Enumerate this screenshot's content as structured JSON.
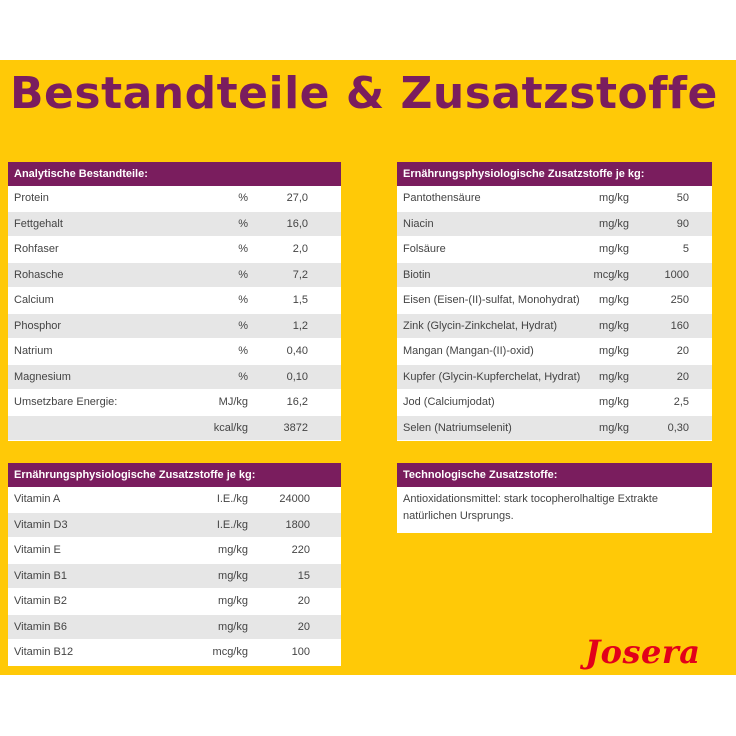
{
  "title": "Bestandteile & Zusatzstoffe",
  "analytic": {
    "header": "Analytische Bestandteile:",
    "rows": [
      {
        "name": "Protein",
        "unit": "%",
        "value": "27,0"
      },
      {
        "name": "Fettgehalt",
        "unit": "%",
        "value": "16,0"
      },
      {
        "name": "Rohfaser",
        "unit": "%",
        "value": "2,0"
      },
      {
        "name": "Rohasche",
        "unit": "%",
        "value": "7,2"
      },
      {
        "name": "Calcium",
        "unit": "%",
        "value": "1,5"
      },
      {
        "name": "Phosphor",
        "unit": "%",
        "value": "1,2"
      },
      {
        "name": "Natrium",
        "unit": "%",
        "value": "0,40"
      },
      {
        "name": "Magnesium",
        "unit": "%",
        "value": "0,10"
      },
      {
        "name": "Umsetzbare Energie:",
        "unit": "MJ/kg",
        "value": "16,2"
      },
      {
        "name": "",
        "unit": "kcal/kg",
        "value": "3872"
      }
    ]
  },
  "vitamins": {
    "header": "Ernährungsphysiologische Zusatzstoffe je kg:",
    "rows": [
      {
        "name": "Vitamin A",
        "unit": "I.E./kg",
        "value": "24000"
      },
      {
        "name": "Vitamin D3",
        "unit": "I.E./kg",
        "value": "1800"
      },
      {
        "name": "Vitamin E",
        "unit": "mg/kg",
        "value": "220"
      },
      {
        "name": "Vitamin B1",
        "unit": "mg/kg",
        "value": "15"
      },
      {
        "name": "Vitamin B2",
        "unit": "mg/kg",
        "value": "20"
      },
      {
        "name": "Vitamin B6",
        "unit": "mg/kg",
        "value": "20"
      },
      {
        "name": "Vitamin B12",
        "unit": "mcg/kg",
        "value": "100"
      }
    ]
  },
  "minerals": {
    "header": "Ernährungsphysiologische Zusatzstoffe je kg:",
    "rows": [
      {
        "name": "Pantothensäure",
        "unit": "mg/kg",
        "value": "50"
      },
      {
        "name": "Niacin",
        "unit": "mg/kg",
        "value": "90"
      },
      {
        "name": "Folsäure",
        "unit": "mg/kg",
        "value": "5"
      },
      {
        "name": "Biotin",
        "unit": "mcg/kg",
        "value": "1000"
      },
      {
        "name": "Eisen (Eisen-(II)-sulfat, Monohydrat)",
        "unit": "mg/kg",
        "value": "250"
      },
      {
        "name": "Zink (Glycin-Zinkchelat, Hydrat)",
        "unit": "mg/kg",
        "value": "160"
      },
      {
        "name": "Mangan (Mangan-(II)-oxid)",
        "unit": "mg/kg",
        "value": "20"
      },
      {
        "name": "Kupfer (Glycin-Kupferchelat, Hydrat)",
        "unit": "mg/kg",
        "value": "20"
      },
      {
        "name": "Jod (Calciumjodat)",
        "unit": "mg/kg",
        "value": "2,5"
      },
      {
        "name": "Selen (Natriumselenit)",
        "unit": "mg/kg",
        "value": "0,30"
      }
    ]
  },
  "technical": {
    "header": "Technologische Zusatzstoffe:",
    "text": "Antioxidationsmittel: stark tocopherolhaltige Extrakte natürlichen Ursprungs."
  },
  "brand": {
    "logo_text": "Josera",
    "logo_color": "#e2001a"
  },
  "colors": {
    "background": "#ffc907",
    "header": "#7a1d5e",
    "row_alt": "#e6e6e6"
  }
}
